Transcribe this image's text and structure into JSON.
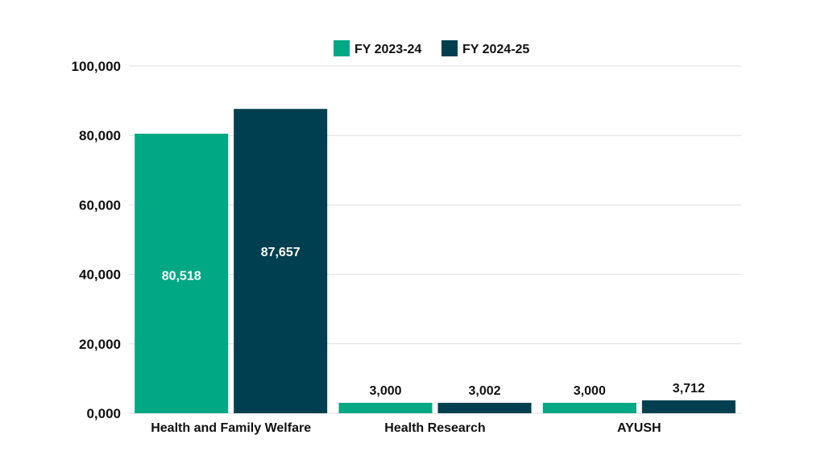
{
  "chart_data": {
    "type": "bar",
    "categories": [
      "Health and Family Welfare",
      "Health Research",
      "AYUSH"
    ],
    "series": [
      {
        "name": "FY 2023-24",
        "values": [
          80518,
          3000,
          3000
        ],
        "labels": [
          "80,518",
          "3,000",
          "3,000"
        ],
        "color": "#00a884"
      },
      {
        "name": "FY 2024-25",
        "values": [
          87657,
          3002,
          3712
        ],
        "labels": [
          "87,657",
          "3,002",
          "3,712"
        ],
        "color": "#003f4f"
      }
    ],
    "ylim": [
      0,
      100000
    ],
    "yticks": [
      0,
      20000,
      40000,
      60000,
      80000,
      100000
    ],
    "ytick_labels": [
      "0,000",
      "20,000",
      "40,000",
      "60,000",
      "80,000",
      "100,000"
    ],
    "grid": true,
    "legend": "top-center",
    "title": "",
    "xlabel": "",
    "ylabel": ""
  }
}
